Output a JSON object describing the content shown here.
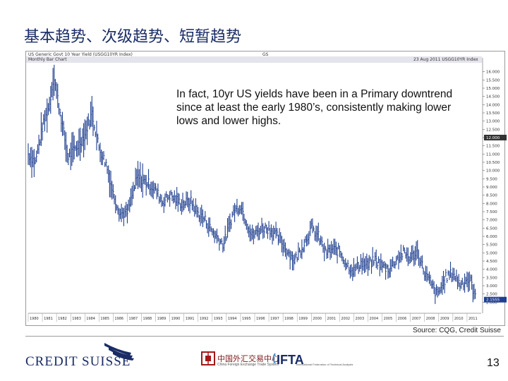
{
  "slide": {
    "title": "基本趋势、次级趋势、短暂趋势",
    "annotation": "In fact, 10yr US yields have been in a Primary downtrend since at least the early 1980’s, consistently making lower lows and lower highs.",
    "source": "Source: CQG, Credit Suisse",
    "page_number": "13"
  },
  "chart_header": {
    "security": "US Generic Govt 10 Year Yield (USGG10YR Index)",
    "ticker_short": "GS",
    "panel_label": "Monthly Bar Chart",
    "date_stamp": "23 Aug 2011 USGG10YR Index"
  },
  "footer": {
    "logo_text": "CREDIT SUISSE",
    "partner_name": "中国外汇交易中心",
    "partner_sub": "China Foreign Exchange Trade System",
    "ifta_text": "IFTA",
    "ifta_sub": "International Federation of Technical Analysts"
  },
  "colors": {
    "title": "#1a2c66",
    "bars": "#1f3f8f",
    "brand": "#1a2c66"
  },
  "chart_data": {
    "type": "line",
    "title": "",
    "xlabel": "",
    "ylabel": "",
    "ylim": [
      1.5,
      16.5
    ],
    "grid": false,
    "last_value_label": "2.1555",
    "current_value_label": "12.000",
    "x_ticks": [
      "1980",
      "1981",
      "1982",
      "1983",
      "1984",
      "1985",
      "1986",
      "1987",
      "1988",
      "1989",
      "1990",
      "1991",
      "1992",
      "1993",
      "1994",
      "1995",
      "1996",
      "1997",
      "1998",
      "1999",
      "2000",
      "2001",
      "2002",
      "2003",
      "2004",
      "2005",
      "2006",
      "2007",
      "2008",
      "2009",
      "2010",
      "2011"
    ],
    "y_ticks": [
      "16.000",
      "15.500",
      "15.000",
      "14.500",
      "14.000",
      "13.500",
      "13.000",
      "12.500",
      "12.000",
      "11.500",
      "11.000",
      "10.500",
      "10.000",
      "9.500",
      "9.000",
      "8.500",
      "8.000",
      "7.500",
      "7.000",
      "6.500",
      "6.000",
      "5.500",
      "5.000",
      "4.500",
      "4.000",
      "3.500",
      "3.000",
      "2.500",
      "2.000"
    ],
    "series": [
      {
        "x": [
          1980.0,
          1980.5,
          1981.0,
          1981.5,
          1981.8,
          1982.3,
          1982.8,
          1983.5,
          1984.0,
          1984.5,
          1985.0,
          1985.5,
          1986.0,
          1986.5,
          1987.0,
          1987.7,
          1988.5,
          1989.0,
          1989.5,
          1990.0,
          1990.8,
          1991.5,
          1992.0,
          1992.5,
          1993.0,
          1993.8,
          1994.5,
          1995.0,
          1995.8,
          1996.5,
          1997.0,
          1997.5,
          1998.0,
          1998.8,
          1999.5,
          2000.0,
          2000.5,
          2001.0,
          2001.5,
          2002.0,
          2002.5,
          2003.0,
          2003.5,
          2004.0,
          2004.5,
          2005.0,
          2005.5,
          2006.0,
          2006.5,
          2007.0,
          2007.5,
          2008.0,
          2008.9,
          2009.5,
          2010.0,
          2010.5,
          2011.0,
          2011.3,
          2011.6
        ],
        "y": [
          11.0,
          10.5,
          12.6,
          14.0,
          15.8,
          13.3,
          10.8,
          11.5,
          12.2,
          13.5,
          11.4,
          10.4,
          8.6,
          7.4,
          7.4,
          9.6,
          9.2,
          8.8,
          8.1,
          8.5,
          8.0,
          8.1,
          7.4,
          7.0,
          6.3,
          5.5,
          7.5,
          7.9,
          6.0,
          6.5,
          6.5,
          6.1,
          5.5,
          4.5,
          5.6,
          6.5,
          6.0,
          5.0,
          5.2,
          5.1,
          4.3,
          3.9,
          4.4,
          4.2,
          4.6,
          4.2,
          4.0,
          4.6,
          5.0,
          4.7,
          5.1,
          3.8,
          2.4,
          3.5,
          3.8,
          3.1,
          3.4,
          3.2,
          2.2
        ]
      }
    ]
  }
}
